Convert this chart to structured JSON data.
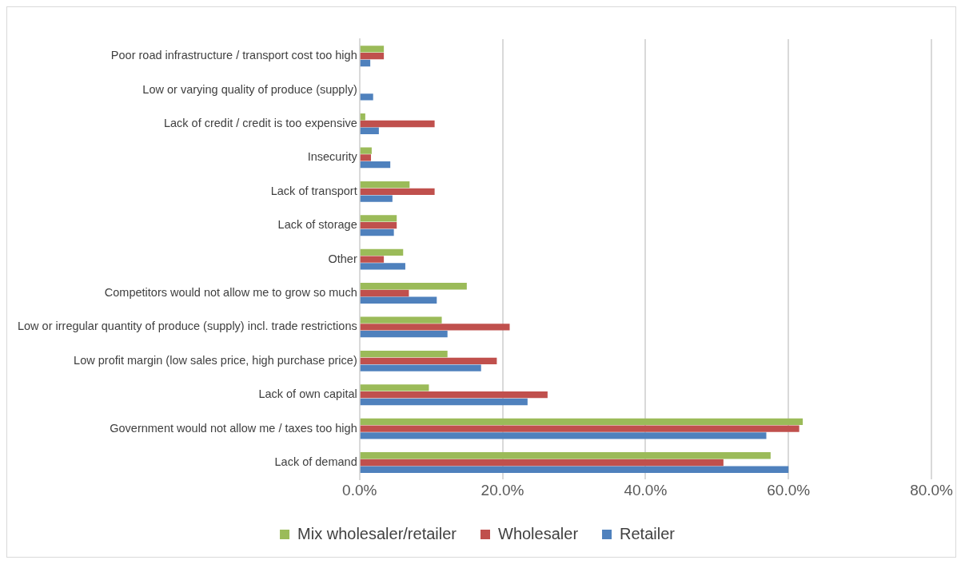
{
  "chart_data": {
    "type": "bar",
    "orientation": "horizontal",
    "categories": [
      "Poor road infrastructure / transport cost too high",
      "Low or varying quality of produce (supply)",
      "Lack of credit / credit is too expensive",
      "Insecurity",
      "Lack of transport",
      "Lack of storage",
      "Other",
      "Competitors would not allow me to grow so much",
      "Low or irregular quantity of produce (supply) incl. trade restrictions",
      "Low profit margin (low sales price, high purchase price)",
      "Lack of own capital",
      "Government would not allow me / taxes too high",
      "Lack of demand"
    ],
    "series": [
      {
        "name": "Mix wholesaler/retailer",
        "color": "#9bbb59",
        "values": [
          3.4,
          0,
          0.8,
          1.7,
          7.0,
          5.2,
          6.1,
          15.0,
          11.5,
          12.3,
          9.7,
          62.0,
          57.5
        ]
      },
      {
        "name": "Wholesaler",
        "color": "#c0504d",
        "values": [
          3.4,
          0,
          10.5,
          1.6,
          10.5,
          5.2,
          3.4,
          6.9,
          21.0,
          19.2,
          26.3,
          61.5,
          50.9
        ]
      },
      {
        "name": "Retailer",
        "color": "#4f81bd",
        "values": [
          1.5,
          1.9,
          2.7,
          4.3,
          4.6,
          4.8,
          6.4,
          10.8,
          12.3,
          17.0,
          23.5,
          56.9,
          60.0
        ]
      }
    ],
    "xlim": [
      0,
      80
    ],
    "xticks": [
      {
        "value": 0,
        "label": "0.0%"
      },
      {
        "value": 20,
        "label": "20.0%"
      },
      {
        "value": 40,
        "label": "40.0%"
      },
      {
        "value": 60,
        "label": "60.0%"
      },
      {
        "value": 80,
        "label": "80.0%"
      }
    ],
    "grid": "x",
    "legend": "bottom"
  }
}
